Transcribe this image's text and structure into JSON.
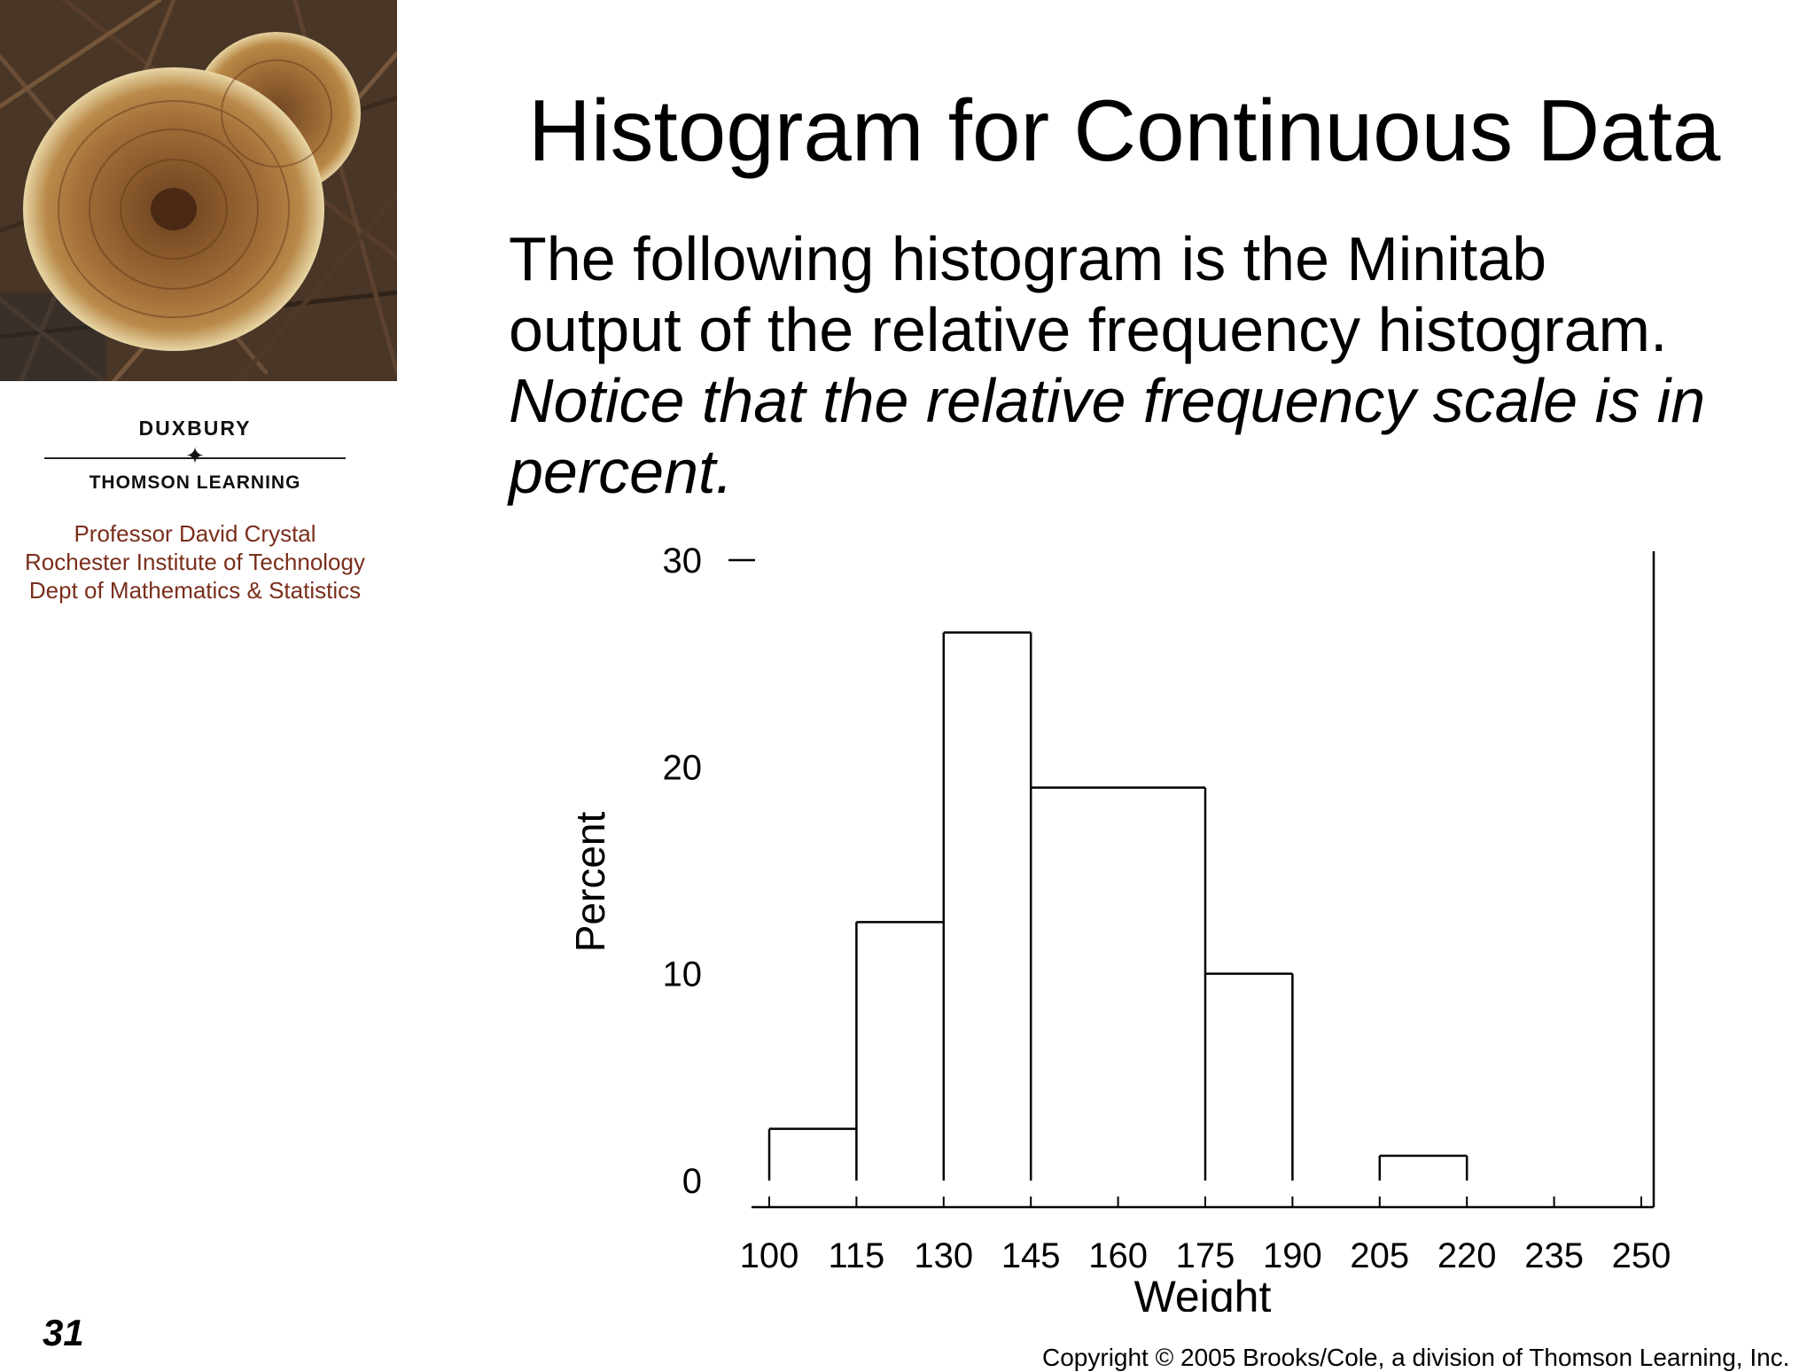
{
  "title": "Histogram for Continuous Data",
  "body": {
    "line1": "The following histogram is the Minitab",
    "line2": "output of the relative frequency histogram.",
    "italic": "Notice that the relative frequency scale is in percent."
  },
  "branding": {
    "publisher_top": "DUXBURY",
    "publisher_bottom": "THOMSON LEARNING",
    "professor_lines": [
      "Professor David Crystal",
      "Rochester Institute of Technology",
      "Dept of Mathematics & Statistics"
    ]
  },
  "page_number": "31",
  "copyright": "Copyright © 2005 Brooks/Cole, a division of Thomson Learning, Inc.",
  "colors": {
    "text": "#000000",
    "professor": "#7a2e1c"
  },
  "chart_data": {
    "type": "bar",
    "xlabel": "Weight",
    "ylabel": "Percent",
    "ylim": [
      0,
      30
    ],
    "yticks": [
      0,
      10,
      20,
      30
    ],
    "xlim": [
      100,
      250
    ],
    "xticks": [
      100,
      115,
      130,
      145,
      160,
      175,
      190,
      205,
      220,
      235,
      250
    ],
    "bins": [
      {
        "from": 100,
        "to": 115,
        "value": 2.5
      },
      {
        "from": 115,
        "to": 130,
        "value": 12.5
      },
      {
        "from": 130,
        "to": 145,
        "value": 26.5
      },
      {
        "from": 145,
        "to": 175,
        "value": 19
      },
      {
        "from": 175,
        "to": 190,
        "value": 10
      },
      {
        "from": 190,
        "to": 205,
        "value": 0
      },
      {
        "from": 205,
        "to": 220,
        "value": 1.2
      },
      {
        "from": 220,
        "to": 250,
        "value": 0
      }
    ],
    "grid": false,
    "legend": "none"
  }
}
